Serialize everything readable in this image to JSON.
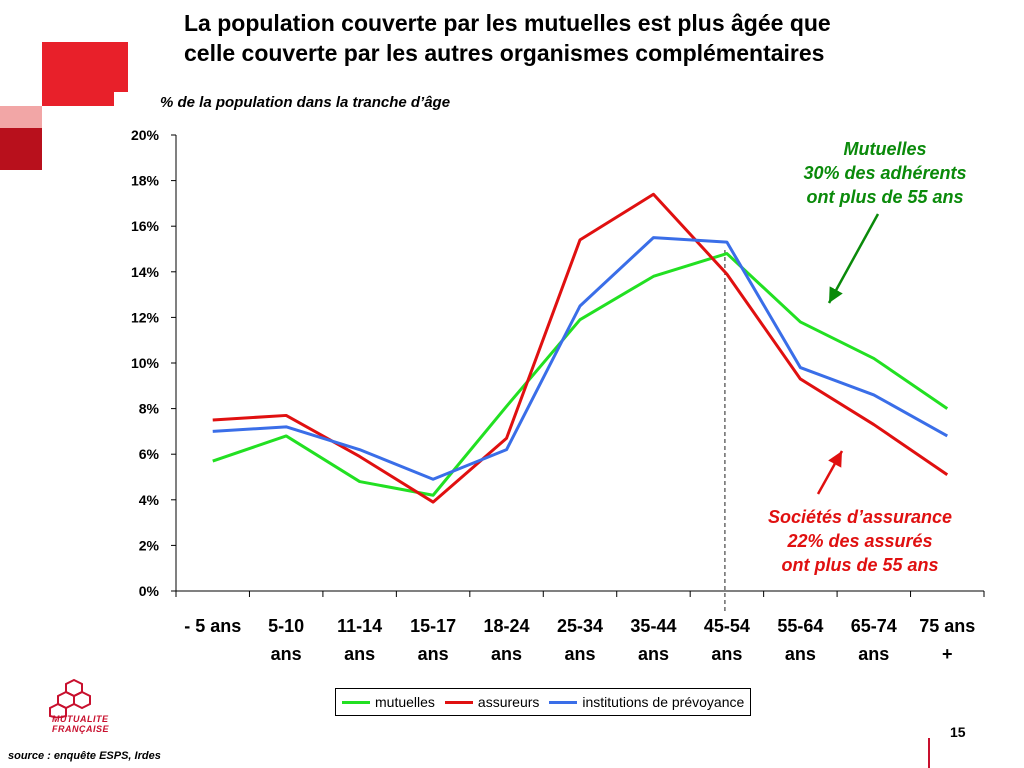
{
  "title_lines": [
    "La population couverte par les mutuelles est plus âgée que",
    "celle couverte par les autres organismes complémentaires"
  ],
  "subtitle": "% de la population dans la tranche d’âge",
  "annotations": {
    "mutuelles": [
      "Mutuelles",
      "30% des adhérents",
      "ont plus de 55 ans"
    ],
    "assureurs": [
      "Sociétés d’assurance",
      "22% des assurés",
      "ont plus de 55 ans"
    ]
  },
  "source": "source : enquête ESPS, Irdes",
  "page_number": "15",
  "logo": {
    "line1": "MUTUALITE",
    "line2": "FRANÇAISE"
  },
  "colors": {
    "mutuelles": "#22e022",
    "assureurs": "#e01010",
    "institutions": "#3a6ee8",
    "annot_green": "#0a8a0a",
    "brand_red": "#c8102e"
  },
  "chart_data": {
    "type": "line",
    "categories": [
      [
        "- 5 ans"
      ],
      [
        "5-10",
        "ans"
      ],
      [
        "11-14",
        "ans"
      ],
      [
        "15-17",
        "ans"
      ],
      [
        "18-24",
        "ans"
      ],
      [
        "25-34",
        "ans"
      ],
      [
        "35-44",
        "ans"
      ],
      [
        "45-54",
        "ans"
      ],
      [
        "55-64",
        "ans"
      ],
      [
        "65-74",
        "ans"
      ],
      [
        "75 ans",
        "+"
      ]
    ],
    "ylim": [
      0,
      20
    ],
    "yticks": [
      0,
      2,
      4,
      6,
      8,
      10,
      12,
      14,
      16,
      18,
      20
    ],
    "ytick_labels": [
      "0%",
      "2%",
      "4%",
      "6%",
      "8%",
      "10%",
      "12%",
      "14%",
      "16%",
      "18%",
      "20%"
    ],
    "grid": false,
    "legend_position": "bottom",
    "series": [
      {
        "name": "mutuelles",
        "color": "#22e022",
        "values": [
          5.7,
          6.8,
          4.8,
          4.2,
          8.1,
          11.9,
          13.8,
          14.8,
          11.8,
          10.2,
          8.0
        ]
      },
      {
        "name": "assureurs",
        "color": "#e01010",
        "values": [
          7.5,
          7.7,
          5.9,
          3.9,
          6.7,
          15.4,
          17.4,
          13.9,
          9.3,
          7.3,
          5.1
        ]
      },
      {
        "name": "institutions de prévoyance",
        "color": "#3a6ee8",
        "values": [
          7.0,
          7.2,
          6.2,
          4.9,
          6.2,
          12.5,
          15.5,
          15.3,
          9.8,
          8.6,
          6.8
        ]
      }
    ],
    "reference_line_after_category": 7
  }
}
